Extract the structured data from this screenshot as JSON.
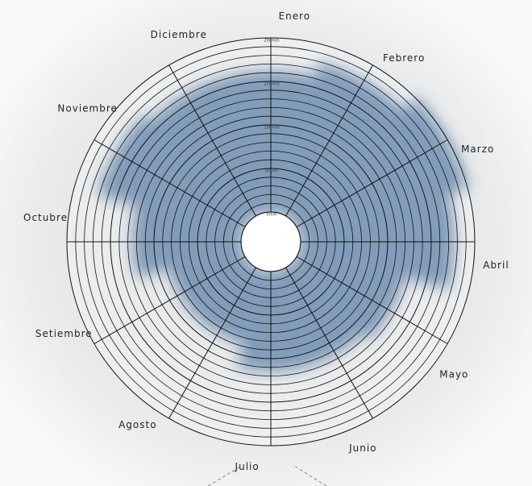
{
  "chart_data": {
    "type": "radial",
    "categories": [
      "Enero",
      "Febrero",
      "Marzo",
      "Abril",
      "Mayo",
      "Junio",
      "Julio",
      "Agosto",
      "Setiembre",
      "Octubre",
      "Noviembre",
      "Diciembre"
    ],
    "values": [
      162,
      180,
      200,
      177,
      125,
      115,
      115,
      87,
      87,
      125,
      172,
      162
    ],
    "color": "#3e6a96",
    "rlim": [
      0,
      200
    ],
    "rticks": [
      {
        "value": 0,
        "label": "0mm"
      },
      {
        "value": 50,
        "label": "50mm"
      },
      {
        "value": 100,
        "label": "100mm"
      },
      {
        "value": 150,
        "label": "150mm"
      },
      {
        "value": 200,
        "label": "200mm"
      }
    ],
    "minor_rticks": [
      10,
      20,
      30,
      40,
      60,
      70,
      80,
      90,
      110,
      120,
      130,
      140,
      160,
      170,
      180,
      190
    ]
  }
}
